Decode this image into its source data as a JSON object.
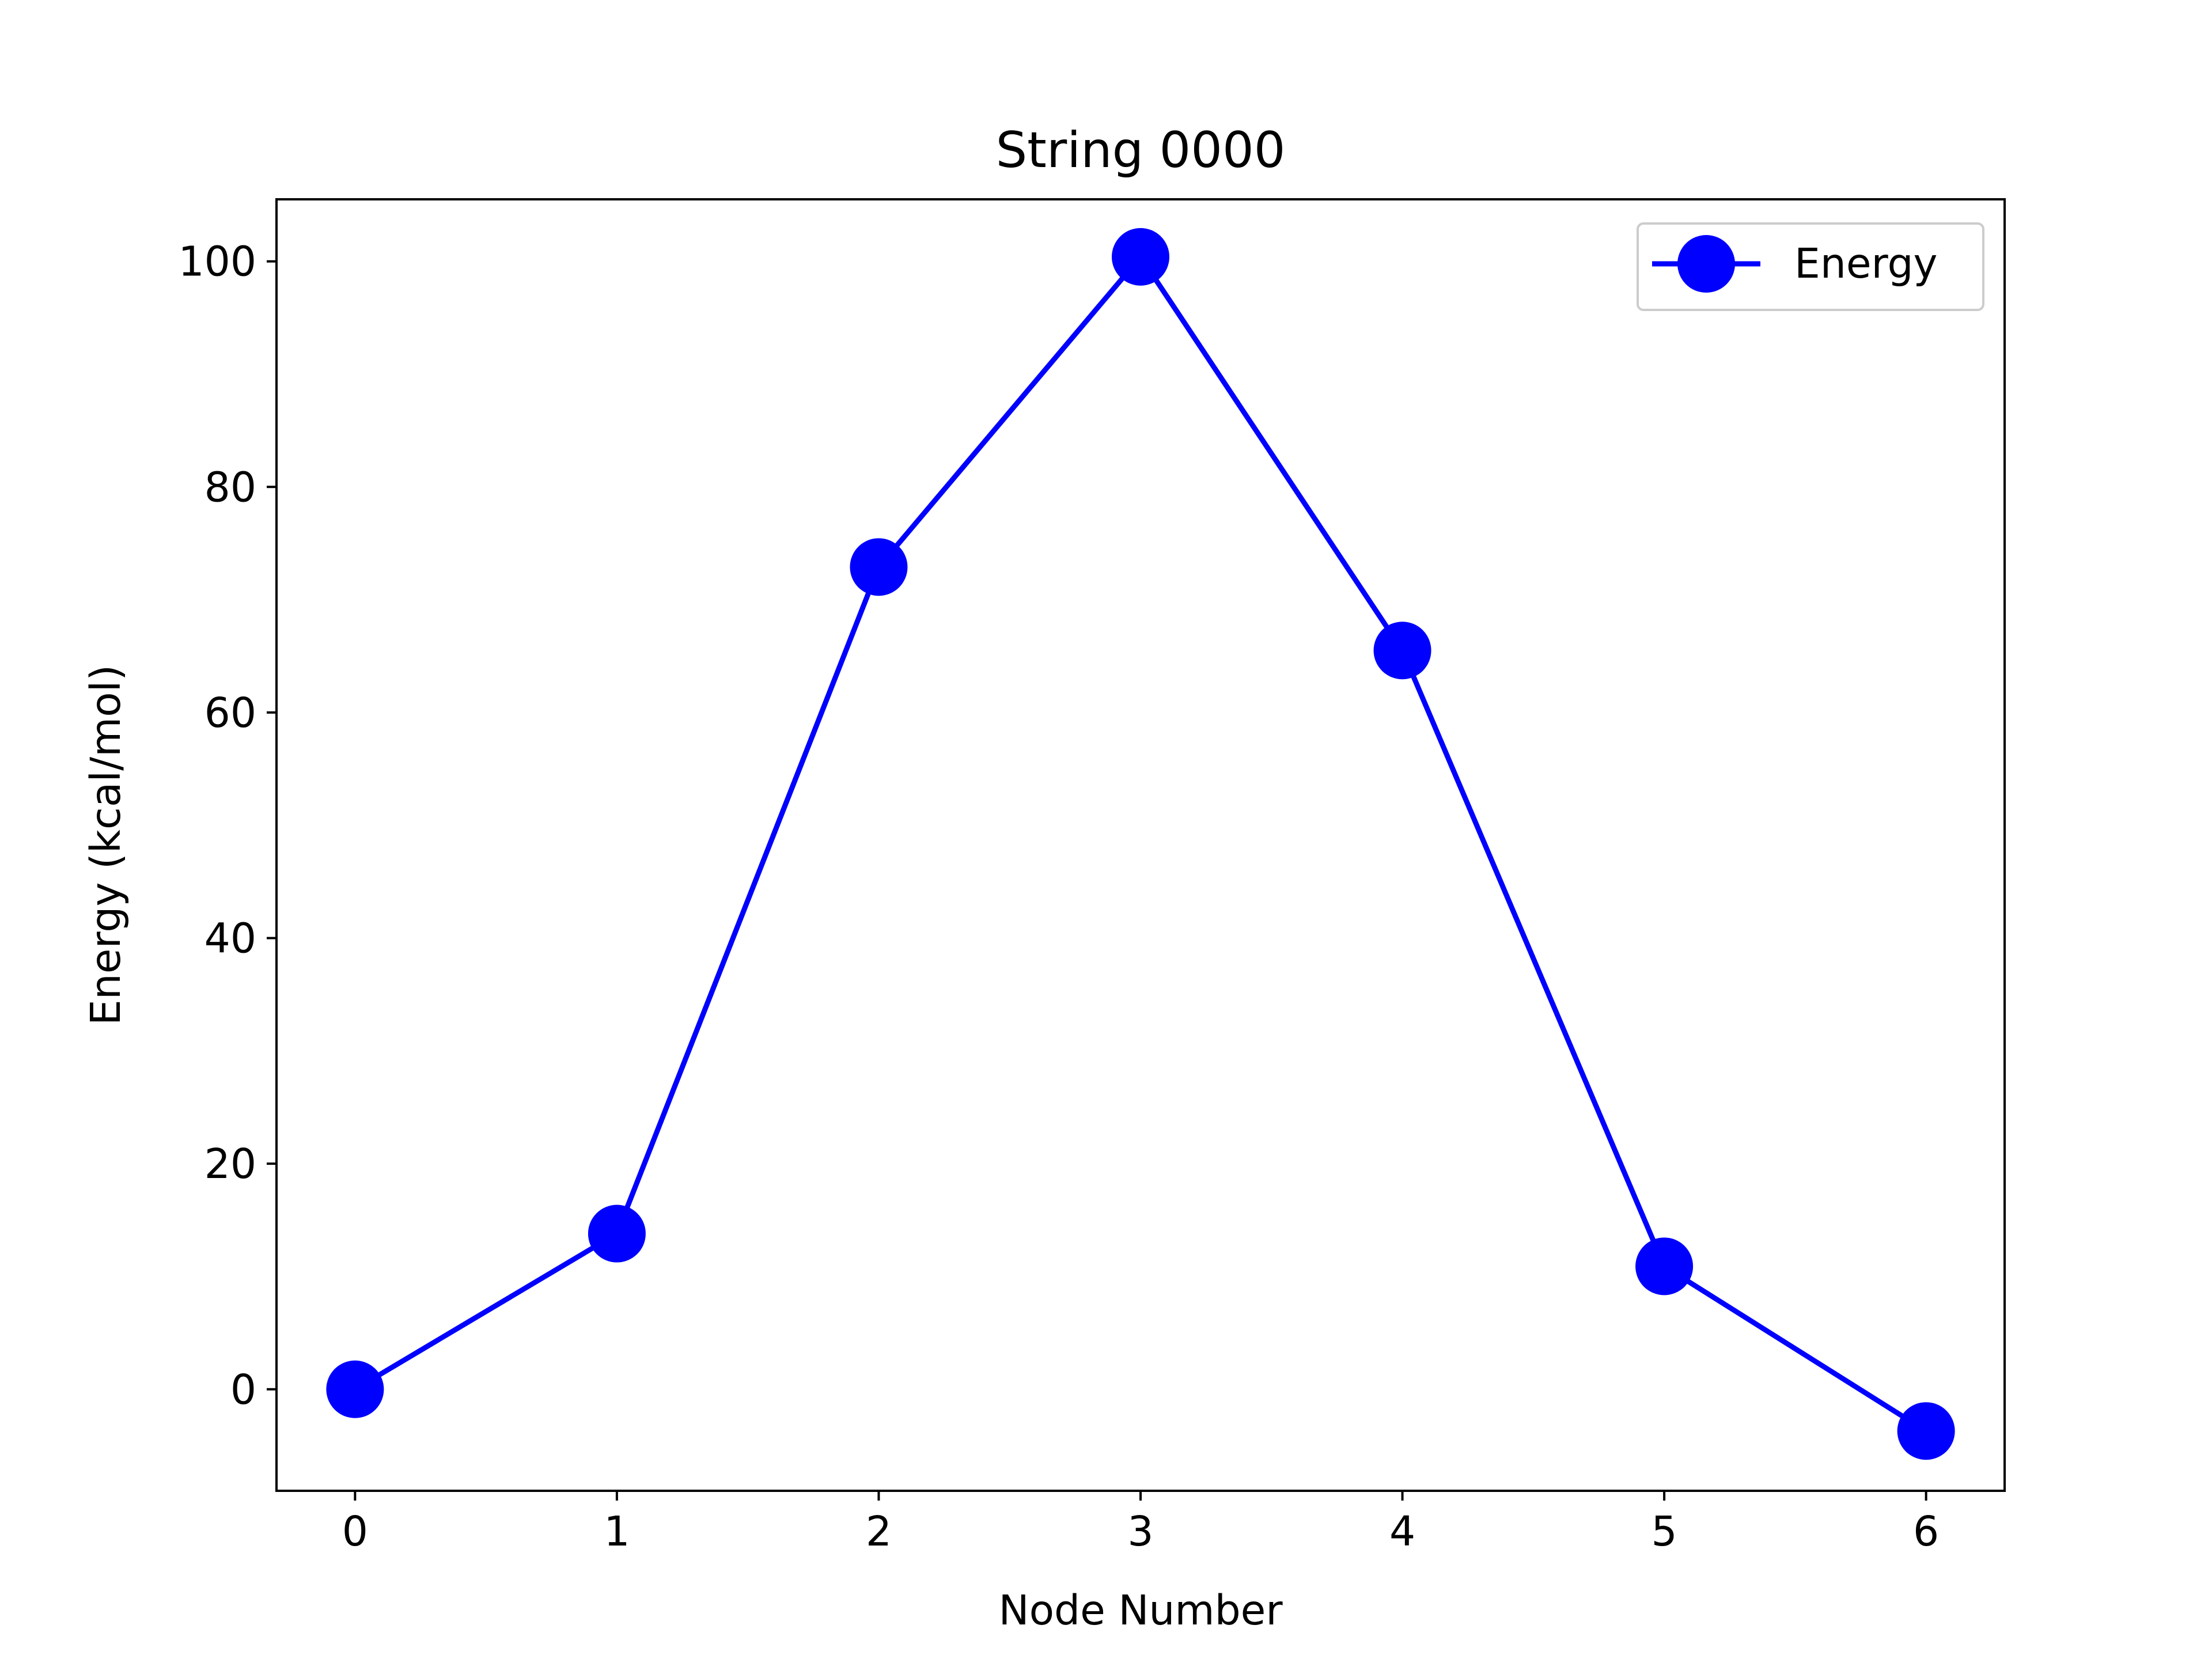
{
  "chart_data": {
    "type": "line",
    "title": "String 0000",
    "xlabel": "Node Number",
    "ylabel": "Energy (kcal/mol)",
    "x": [
      0,
      1,
      2,
      3,
      4,
      5,
      6
    ],
    "series": [
      {
        "name": "Energy",
        "color": "#0000ff",
        "marker": "circle",
        "values": [
          0.0,
          13.8,
          72.9,
          100.4,
          65.5,
          10.9,
          -3.7
        ]
      }
    ],
    "xlim": [
      -0.3,
      6.3
    ],
    "ylim": [
      -9,
      105.5
    ],
    "xticks": [
      0,
      1,
      2,
      3,
      4,
      5,
      6
    ],
    "yticks": [
      0,
      20,
      40,
      60,
      80,
      100
    ],
    "xtick_labels": [
      "0",
      "1",
      "2",
      "3",
      "4",
      "5",
      "6"
    ],
    "ytick_labels": [
      "0",
      "20",
      "40",
      "60",
      "80",
      "100"
    ],
    "grid": false,
    "legend": {
      "placement": "upper-right",
      "entries": [
        "Energy"
      ]
    }
  }
}
